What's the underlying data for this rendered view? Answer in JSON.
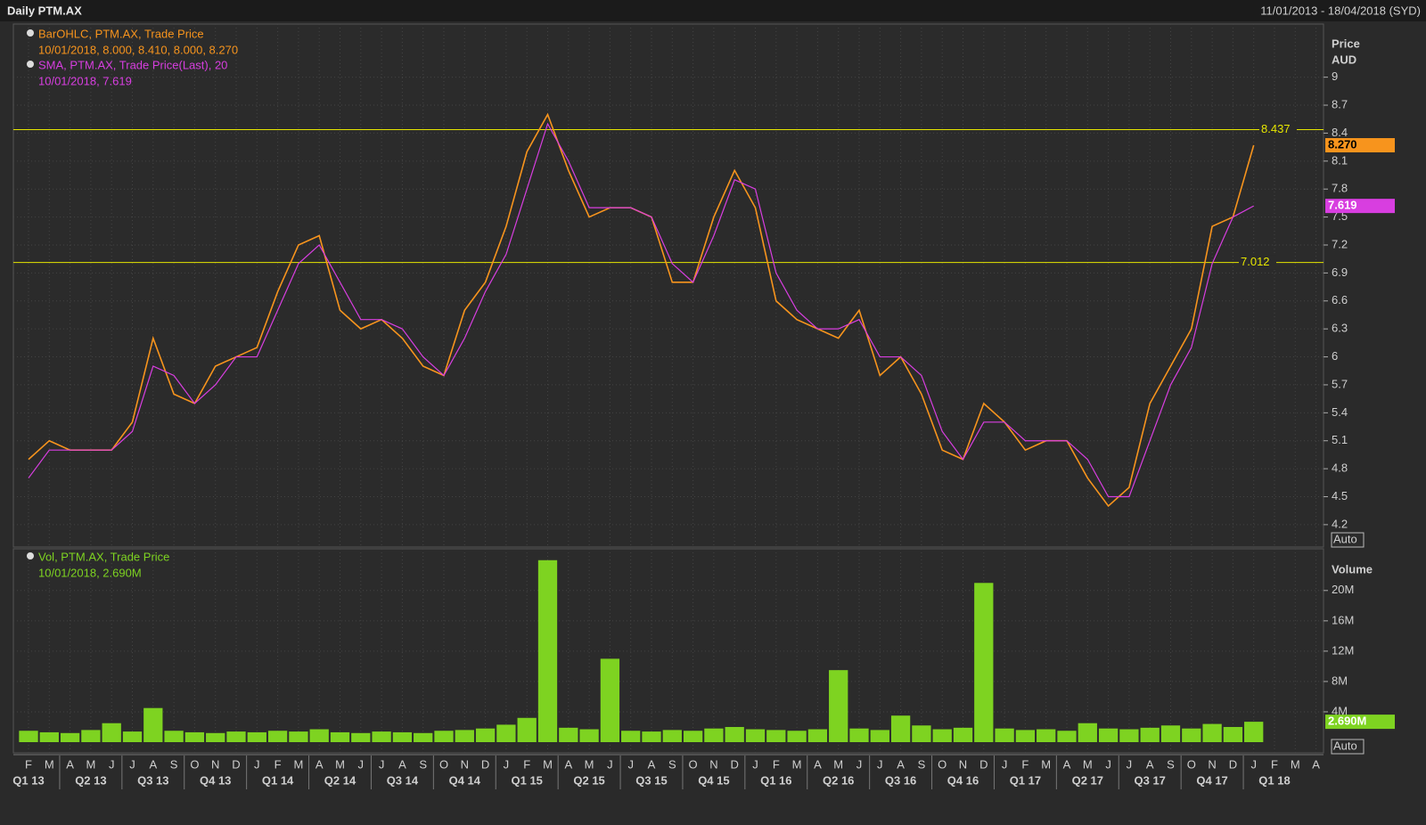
{
  "header": {
    "title": "Daily PTM.AX",
    "range": "11/01/2013 - 18/04/2018 (SYD)"
  },
  "x_axis": {
    "months": [
      "F",
      "M",
      "A",
      "M",
      "J",
      "J",
      "A",
      "S",
      "O",
      "N",
      "D",
      "J",
      "F",
      "M",
      "A",
      "M",
      "J",
      "J",
      "A",
      "S",
      "O",
      "N",
      "D",
      "J",
      "F",
      "M",
      "A",
      "M",
      "J",
      "J",
      "A",
      "S",
      "O",
      "N",
      "D",
      "J",
      "F",
      "M",
      "A",
      "M",
      "J",
      "J",
      "A",
      "S",
      "O",
      "N",
      "D",
      "J",
      "F",
      "M",
      "A",
      "M",
      "J",
      "J",
      "A",
      "S",
      "O",
      "N",
      "D",
      "J",
      "F",
      "M",
      "A"
    ],
    "quarters": [
      "Q1 13",
      "Q2 13",
      "Q3 13",
      "Q4 13",
      "Q1 14",
      "Q2 14",
      "Q3 14",
      "Q4 14",
      "Q1 15",
      "Q2 15",
      "Q3 15",
      "Q4 15",
      "Q1 16",
      "Q2 16",
      "Q3 16",
      "Q4 16",
      "Q1 17",
      "Q2 17",
      "Q3 17",
      "Q4 17",
      "Q1 18"
    ]
  },
  "chart_data": [
    {
      "type": "line",
      "y_label": "Price",
      "y_unit": "AUD",
      "scale_mode": "Auto",
      "grid": true,
      "ylim": [
        3.96,
        9.57
      ],
      "yticks": [
        4.2,
        4.5,
        4.8,
        5.1,
        5.4,
        5.7,
        6,
        6.3,
        6.6,
        6.9,
        7.2,
        7.5,
        7.8,
        8.1,
        8.4,
        8.7,
        9
      ],
      "reference_lines": [
        8.437,
        7.012
      ],
      "series": [
        {
          "name": "BarOHLC, PTM.AX, Trade Price",
          "legend_text": "10/01/2018, 8.000, 8.410, 8.000, 8.270",
          "color": "#f7941d",
          "values": [
            4.9,
            5.1,
            5.0,
            5.0,
            5.0,
            5.3,
            6.2,
            5.6,
            5.5,
            5.9,
            6.0,
            6.1,
            6.7,
            7.2,
            7.3,
            6.5,
            6.3,
            6.4,
            6.2,
            5.9,
            5.8,
            6.5,
            6.8,
            7.4,
            8.2,
            8.6,
            8.0,
            7.5,
            7.6,
            7.6,
            7.5,
            6.8,
            6.8,
            7.5,
            8.0,
            7.6,
            6.6,
            6.4,
            6.3,
            6.2,
            6.5,
            5.8,
            6.0,
            5.6,
            5.0,
            4.9,
            5.5,
            5.3,
            5.0,
            5.1,
            5.1,
            4.7,
            4.4,
            4.6,
            5.5,
            5.9,
            6.3,
            7.4,
            7.5,
            8.27,
            null,
            null,
            null
          ],
          "value_labels": [
            null,
            null,
            null,
            null,
            null,
            null,
            null,
            null,
            null,
            null,
            null,
            null,
            null,
            null,
            null,
            null,
            null,
            null,
            null,
            null,
            null,
            null,
            null,
            null,
            null,
            null,
            null,
            null,
            null,
            null,
            null,
            null,
            null,
            null,
            null,
            null,
            null,
            null,
            null,
            null,
            null,
            null,
            null,
            null,
            null,
            null,
            null,
            null,
            null,
            null,
            null,
            null,
            null,
            null,
            null,
            null,
            null,
            null,
            null,
            "8.270",
            null,
            null,
            null
          ]
        },
        {
          "name": "SMA, PTM.AX, Trade Price(Last),  20",
          "legend_text": "10/01/2018, 7.619",
          "color": "#d83ee0",
          "values": [
            4.7,
            5.0,
            5.0,
            5.0,
            5.0,
            5.2,
            5.9,
            5.8,
            5.5,
            5.7,
            6.0,
            6.0,
            6.5,
            7.0,
            7.2,
            6.8,
            6.4,
            6.4,
            6.3,
            6.0,
            5.8,
            6.2,
            6.7,
            7.1,
            7.8,
            8.5,
            8.1,
            7.6,
            7.6,
            7.6,
            7.5,
            7.0,
            6.8,
            7.3,
            7.9,
            7.8,
            6.9,
            6.5,
            6.3,
            6.3,
            6.4,
            6.0,
            6.0,
            5.8,
            5.2,
            4.9,
            5.3,
            5.3,
            5.1,
            5.1,
            5.1,
            4.9,
            4.5,
            4.5,
            5.1,
            5.7,
            6.1,
            7.0,
            7.5,
            7.619,
            null,
            null,
            null
          ]
        }
      ]
    },
    {
      "type": "bar",
      "y_label": "Volume",
      "scale_mode": "Auto",
      "grid": true,
      "ylim": [
        0,
        25500000
      ],
      "yticks": [
        {
          "value": 4000000,
          "label": "4M"
        },
        {
          "value": 8000000,
          "label": "8M"
        },
        {
          "value": 12000000,
          "label": "12M"
        },
        {
          "value": 16000000,
          "label": "16M"
        },
        {
          "value": 20000000,
          "label": "20M"
        }
      ],
      "series": [
        {
          "name": "Vol, PTM.AX, Trade Price",
          "legend_text": "10/01/2018, 2.690M",
          "color": "#7ed321",
          "values": [
            1500000,
            1300000,
            1200000,
            1600000,
            2500000,
            1400000,
            4500000,
            1500000,
            1300000,
            1200000,
            1400000,
            1300000,
            1500000,
            1400000,
            1700000,
            1300000,
            1200000,
            1400000,
            1300000,
            1200000,
            1500000,
            1600000,
            1800000,
            2300000,
            3200000,
            24000000,
            1900000,
            1700000,
            11000000,
            1500000,
            1400000,
            1600000,
            1500000,
            1800000,
            2000000,
            1700000,
            1600000,
            1500000,
            1700000,
            9500000,
            1800000,
            1600000,
            3500000,
            2200000,
            1700000,
            1900000,
            21000000,
            1800000,
            1600000,
            1700000,
            1500000,
            2500000,
            1800000,
            1700000,
            1900000,
            2200000,
            1800000,
            2400000,
            2000000,
            2690000,
            null,
            null,
            null
          ],
          "value_labels": [
            null,
            null,
            null,
            null,
            null,
            null,
            null,
            null,
            null,
            null,
            null,
            null,
            null,
            null,
            null,
            null,
            null,
            null,
            null,
            null,
            null,
            null,
            null,
            null,
            null,
            null,
            null,
            null,
            null,
            null,
            null,
            null,
            null,
            null,
            null,
            null,
            null,
            null,
            null,
            null,
            null,
            null,
            null,
            null,
            null,
            null,
            null,
            null,
            null,
            null,
            null,
            null,
            null,
            null,
            null,
            null,
            null,
            null,
            null,
            "2.690M",
            null,
            null,
            null
          ]
        }
      ]
    }
  ]
}
